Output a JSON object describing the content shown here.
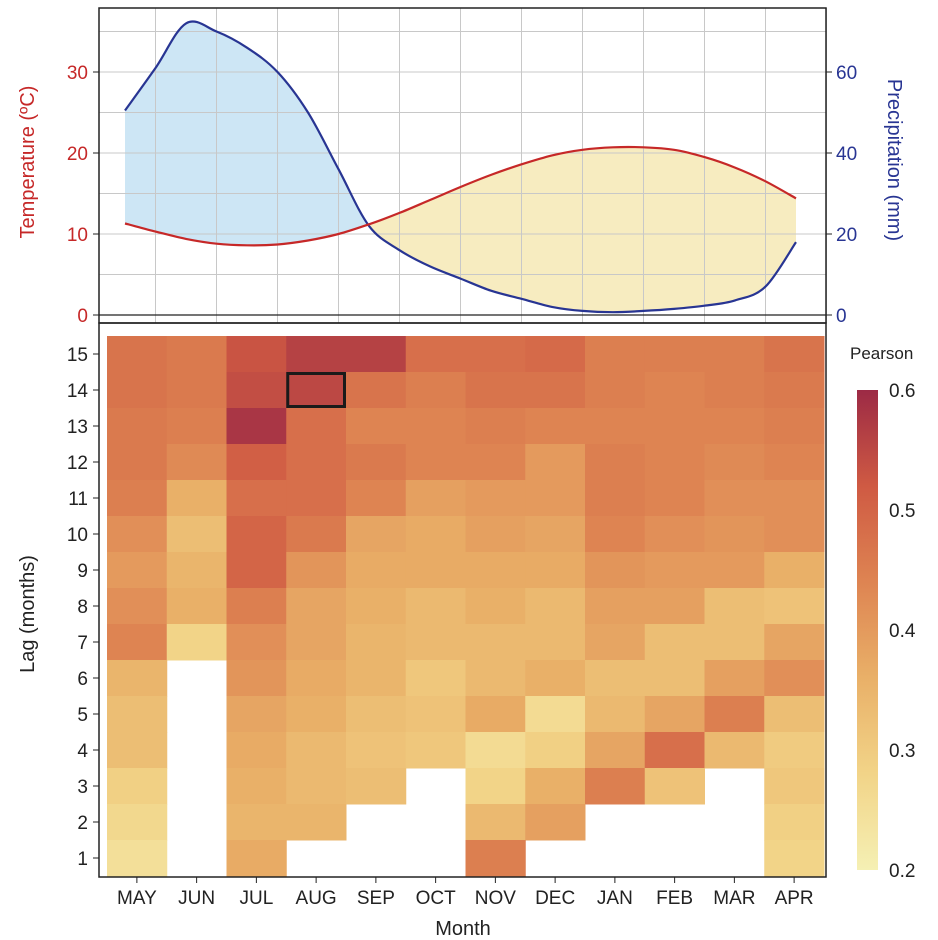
{
  "chart_data": [
    {
      "type": "area",
      "months": [
        "MAY",
        "JUN",
        "JUL",
        "AUG",
        "SEP",
        "OCT",
        "NOV",
        "DEC",
        "JAN",
        "FEB",
        "MAR",
        "APR"
      ],
      "ylabel_left": "Temperature (ºC)",
      "ylabel_right": "Precipitation (mm)",
      "ylim_left": [
        0,
        37
      ],
      "ylim_right": [
        0,
        74
      ],
      "yticks_left": [
        "0",
        "10",
        "20",
        "30"
      ],
      "yticks_right": [
        "0",
        "20",
        "40",
        "60"
      ],
      "colors": {
        "temperature": "#c62828",
        "precipitation": "#283593",
        "wet_fill": "#cde6f5",
        "dry_fill": "#f7ecc0"
      },
      "series": [
        {
          "name": "Temperature (ºC)",
          "x": [
            0,
            0.5,
            1,
            1.5,
            2,
            2.5,
            3,
            3.5,
            4,
            4.5,
            5,
            5.5,
            6,
            6.5,
            7,
            7.5,
            8,
            8.5,
            9,
            9.5,
            10,
            10.5,
            11
          ],
          "values": [
            11.3,
            10.3,
            9.4,
            8.8,
            8.6,
            8.7,
            9.2,
            10.0,
            11.2,
            12.6,
            14.2,
            15.8,
            17.3,
            18.6,
            19.7,
            20.4,
            20.7,
            20.7,
            20.4,
            19.5,
            18.2,
            16.5,
            14.4
          ]
        },
        {
          "name": "Precipitation (mm)",
          "x": [
            0,
            0.5,
            1,
            1.5,
            2,
            2.5,
            3,
            3.5,
            4,
            4.5,
            5,
            5.5,
            6,
            6.5,
            7,
            7.5,
            8,
            8.5,
            9,
            9.5,
            10,
            10.5,
            11
          ],
          "values": [
            50.5,
            61,
            72,
            70,
            66,
            60,
            50,
            36,
            22,
            16,
            12,
            9,
            6,
            4,
            2,
            1,
            0.7,
            1,
            1.5,
            2.3,
            3.6,
            7,
            18
          ]
        }
      ]
    },
    {
      "type": "heatmap",
      "xlabel": "Month",
      "ylabel": "Lag (months)",
      "x_categories": [
        "MAY",
        "JUN",
        "JUL",
        "AUG",
        "SEP",
        "OCT",
        "NOV",
        "DEC",
        "JAN",
        "FEB",
        "MAR",
        "APR"
      ],
      "y_categories": [
        "15",
        "14",
        "13",
        "12",
        "11",
        "10",
        "9",
        "8",
        "7",
        "6",
        "5",
        "4",
        "3",
        "2",
        "1"
      ],
      "values": [
        [
          0.47,
          0.46,
          0.53,
          0.56,
          0.56,
          0.48,
          0.48,
          0.49,
          0.45,
          0.45,
          0.45,
          0.47
        ],
        [
          0.47,
          0.46,
          0.54,
          0.55,
          0.47,
          0.45,
          0.47,
          0.47,
          0.45,
          0.44,
          0.45,
          0.46
        ],
        [
          0.46,
          0.45,
          0.58,
          0.48,
          0.44,
          0.44,
          0.45,
          0.44,
          0.44,
          0.44,
          0.44,
          0.45
        ],
        [
          0.46,
          0.43,
          0.51,
          0.48,
          0.46,
          0.44,
          0.44,
          0.4,
          0.45,
          0.44,
          0.43,
          0.44
        ],
        [
          0.45,
          0.36,
          0.48,
          0.48,
          0.44,
          0.39,
          0.4,
          0.4,
          0.45,
          0.44,
          0.42,
          0.42
        ],
        [
          0.42,
          0.33,
          0.5,
          0.46,
          0.38,
          0.37,
          0.39,
          0.38,
          0.44,
          0.42,
          0.41,
          0.42
        ],
        [
          0.4,
          0.35,
          0.5,
          0.41,
          0.37,
          0.37,
          0.37,
          0.37,
          0.41,
          0.4,
          0.4,
          0.36
        ],
        [
          0.42,
          0.36,
          0.45,
          0.38,
          0.36,
          0.34,
          0.36,
          0.34,
          0.39,
          0.39,
          0.33,
          0.32
        ],
        [
          0.44,
          0.28,
          0.42,
          0.38,
          0.35,
          0.34,
          0.34,
          0.34,
          0.38,
          0.33,
          0.33,
          0.38
        ],
        [
          0.35,
          null,
          0.41,
          0.37,
          0.35,
          0.31,
          0.34,
          0.36,
          0.33,
          0.33,
          0.39,
          0.42
        ],
        [
          0.33,
          null,
          0.38,
          0.36,
          0.33,
          0.32,
          0.37,
          0.26,
          0.34,
          0.38,
          0.45,
          0.33
        ],
        [
          0.33,
          null,
          0.37,
          0.34,
          0.32,
          0.31,
          0.26,
          0.29,
          0.38,
          0.48,
          0.34,
          0.3
        ],
        [
          0.29,
          null,
          0.36,
          0.34,
          0.33,
          null,
          0.28,
          0.36,
          0.45,
          0.32,
          null,
          0.31
        ],
        [
          0.27,
          null,
          0.35,
          0.35,
          null,
          null,
          0.34,
          0.39,
          null,
          null,
          null,
          0.29
        ],
        [
          0.25,
          null,
          0.37,
          null,
          null,
          null,
          0.45,
          null,
          null,
          null,
          null,
          0.28
        ]
      ],
      "highlighted_cell": {
        "month": "AUG",
        "lag": "14"
      },
      "legend_title": "Pearson",
      "colorbar_range": [
        0.2,
        0.6
      ],
      "colorbar_ticks": [
        "0.6",
        "0.5",
        "0.4",
        "0.3",
        "0.2"
      ],
      "colorscale": [
        "#f5f0b4",
        "#f2d488",
        "#e9b068",
        "#de8452",
        "#cf5a43",
        "#9c2a45"
      ]
    }
  ]
}
